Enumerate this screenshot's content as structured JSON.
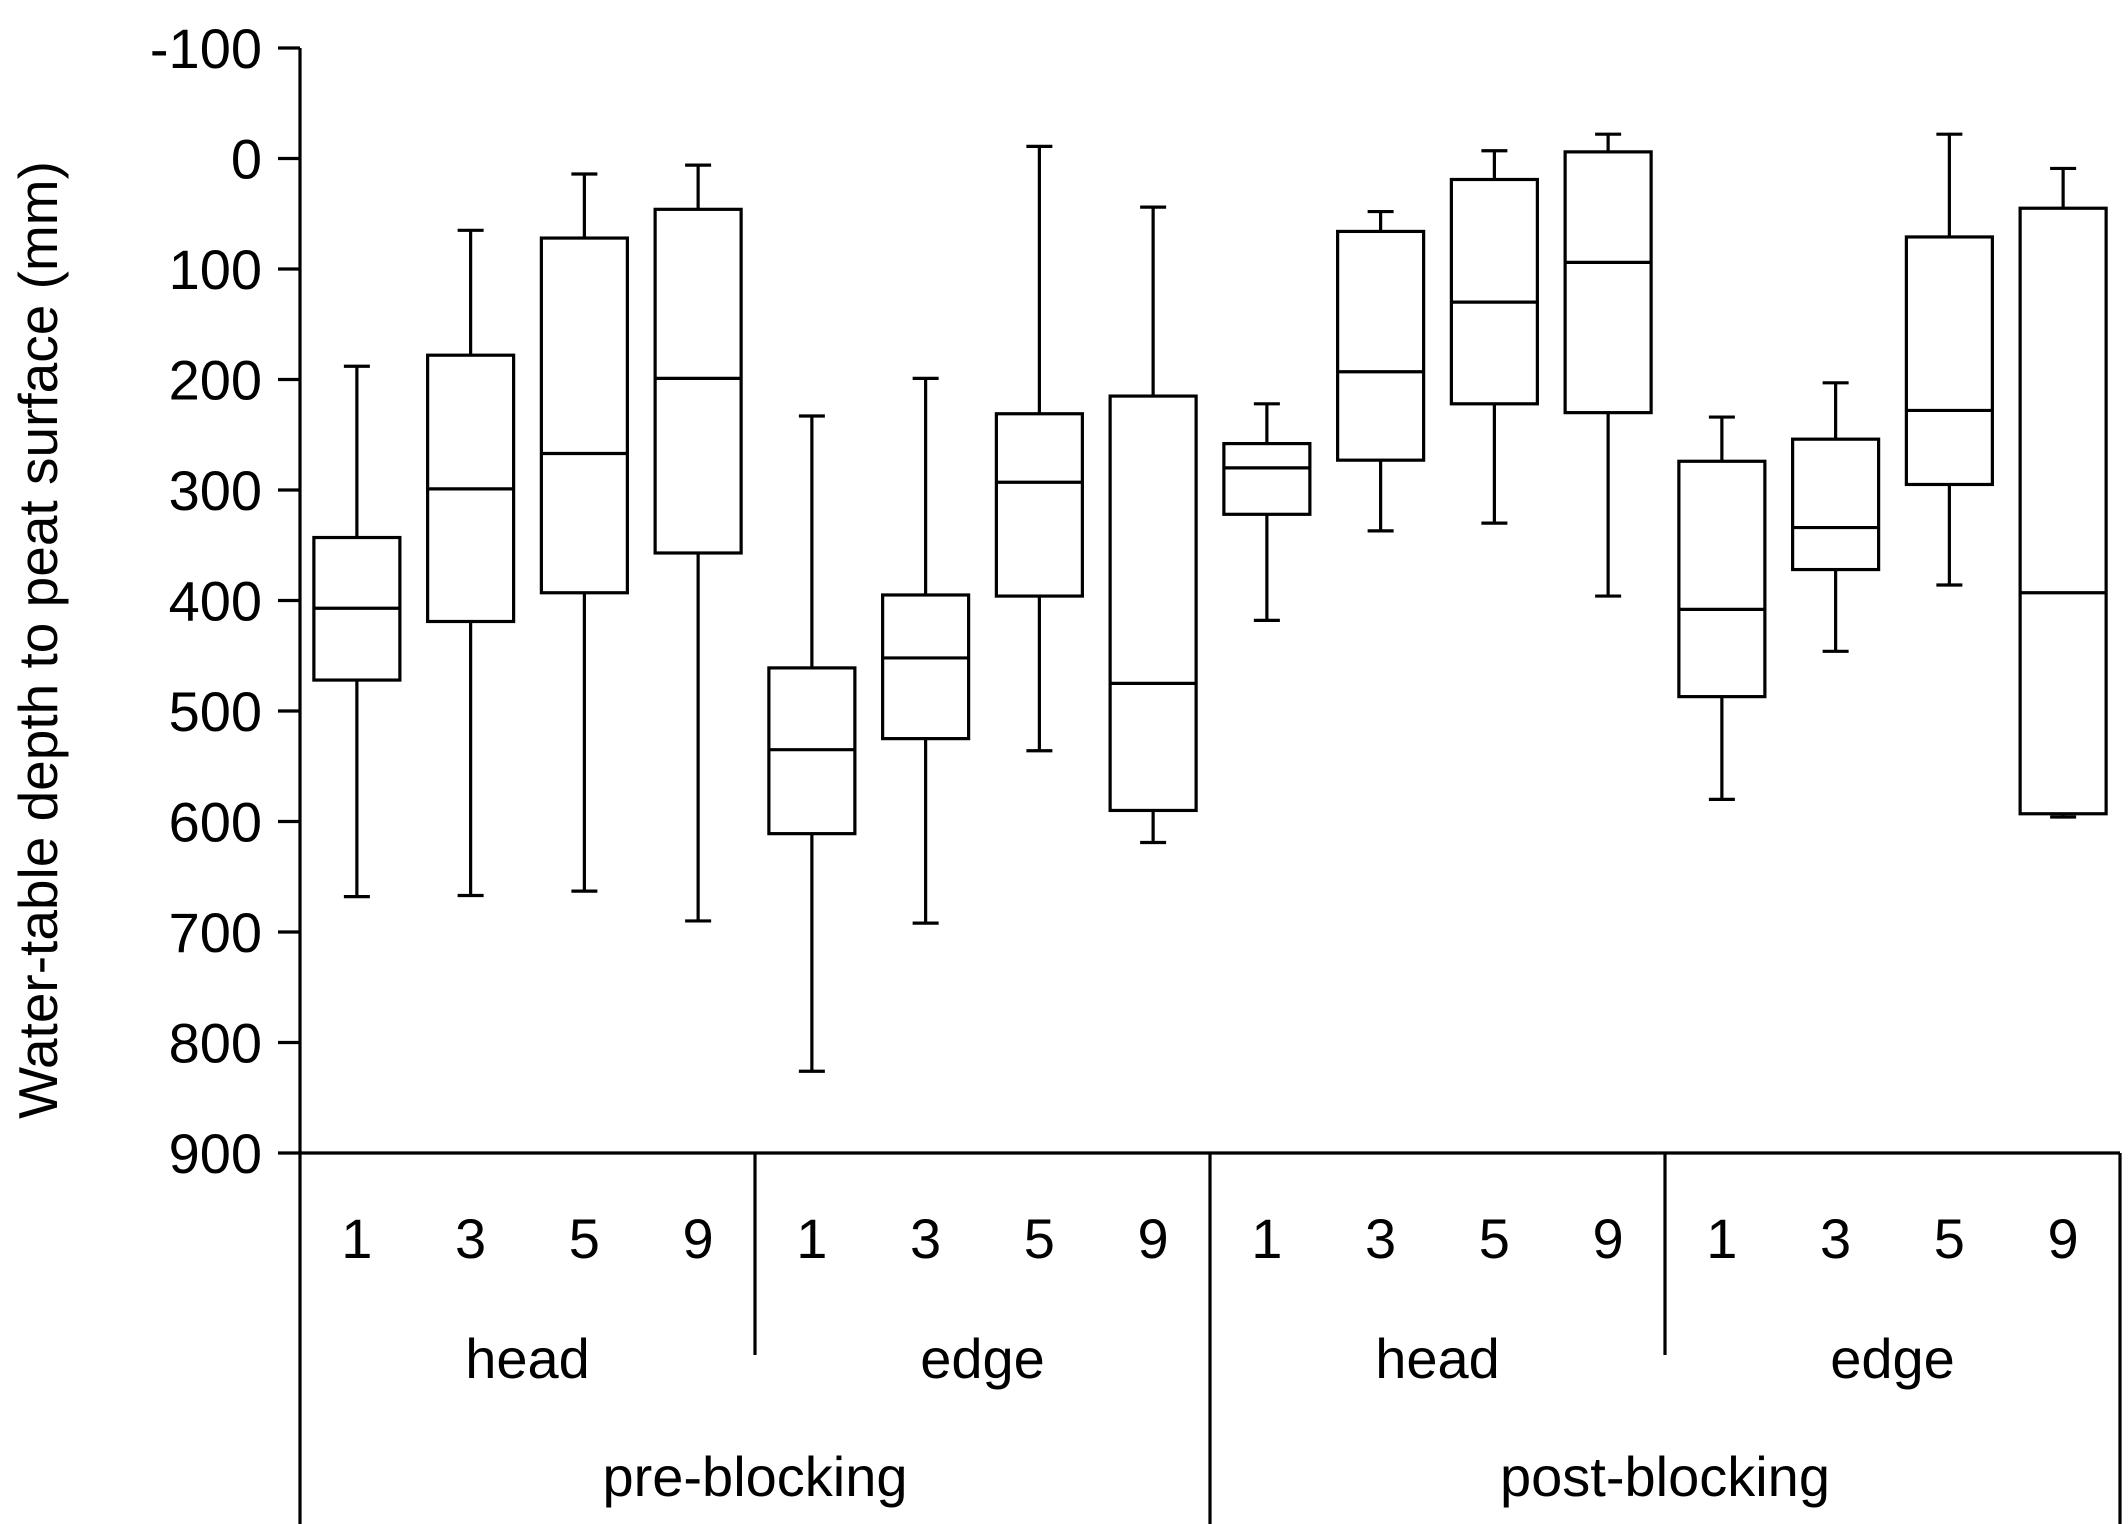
{
  "chart_data": {
    "type": "box",
    "ylabel": "Water-table depth to peat surface (mm)",
    "ylim": [
      -100,
      900
    ],
    "y_inverted": true,
    "yticks": [
      "-100",
      "0",
      "100",
      "200",
      "300",
      "400",
      "500",
      "600",
      "700",
      "800",
      "900"
    ],
    "categories": [
      "1",
      "3",
      "5",
      "9",
      "1",
      "3",
      "5",
      "9",
      "1",
      "3",
      "5",
      "9",
      "1",
      "3",
      "5",
      "9"
    ],
    "groups": [
      "head",
      "edge",
      "head",
      "edge"
    ],
    "supergroups": [
      "pre-blocking",
      "post-blocking"
    ],
    "boxes": [
      {
        "label": "1",
        "group": "head",
        "period": "pre-blocking",
        "min": 188,
        "q1": 343,
        "median": 407,
        "q3": 472,
        "max": 668
      },
      {
        "label": "3",
        "group": "head",
        "period": "pre-blocking",
        "min": 65,
        "q1": 178,
        "median": 299,
        "q3": 419,
        "max": 667
      },
      {
        "label": "5",
        "group": "head",
        "period": "pre-blocking",
        "min": 14,
        "q1": 72,
        "median": 267,
        "q3": 393,
        "max": 663
      },
      {
        "label": "9",
        "group": "head",
        "period": "pre-blocking",
        "min": 6,
        "q1": 46,
        "median": 199,
        "q3": 357,
        "max": 690
      },
      {
        "label": "1",
        "group": "edge",
        "period": "pre-blocking",
        "min": 233,
        "q1": 461,
        "median": 535,
        "q3": 611,
        "max": 826
      },
      {
        "label": "3",
        "group": "edge",
        "period": "pre-blocking",
        "min": 199,
        "q1": 395,
        "median": 452,
        "q3": 525,
        "max": 692
      },
      {
        "label": "5",
        "group": "edge",
        "period": "pre-blocking",
        "min": -11,
        "q1": 231,
        "median": 293,
        "q3": 396,
        "max": 536
      },
      {
        "label": "9",
        "group": "edge",
        "period": "pre-blocking",
        "min": 44,
        "q1": 215,
        "median": 475,
        "q3": 590,
        "max": 619
      },
      {
        "label": "1",
        "group": "head",
        "period": "post-blocking",
        "min": 222,
        "q1": 258,
        "median": 280,
        "q3": 322,
        "max": 418
      },
      {
        "label": "3",
        "group": "head",
        "period": "post-blocking",
        "min": 48,
        "q1": 66,
        "median": 193,
        "q3": 273,
        "max": 337
      },
      {
        "label": "5",
        "group": "head",
        "period": "post-blocking",
        "min": -7,
        "q1": 19,
        "median": 130,
        "q3": 222,
        "max": 330
      },
      {
        "label": "9",
        "group": "head",
        "period": "post-blocking",
        "min": -22,
        "q1": -6,
        "median": 94,
        "q3": 230,
        "max": 396
      },
      {
        "label": "1",
        "group": "edge",
        "period": "post-blocking",
        "min": 234,
        "q1": 274,
        "median": 408,
        "q3": 487,
        "max": 580
      },
      {
        "label": "3",
        "group": "edge",
        "period": "post-blocking",
        "min": 203,
        "q1": 254,
        "median": 334,
        "q3": 372,
        "max": 446
      },
      {
        "label": "5",
        "group": "edge",
        "period": "post-blocking",
        "min": -22,
        "q1": 71,
        "median": 228,
        "q3": 295,
        "max": 386
      },
      {
        "label": "9",
        "group": "edge",
        "period": "post-blocking",
        "min": 9,
        "q1": 45,
        "median": 393,
        "q3": 593,
        "max": 596
      }
    ]
  }
}
